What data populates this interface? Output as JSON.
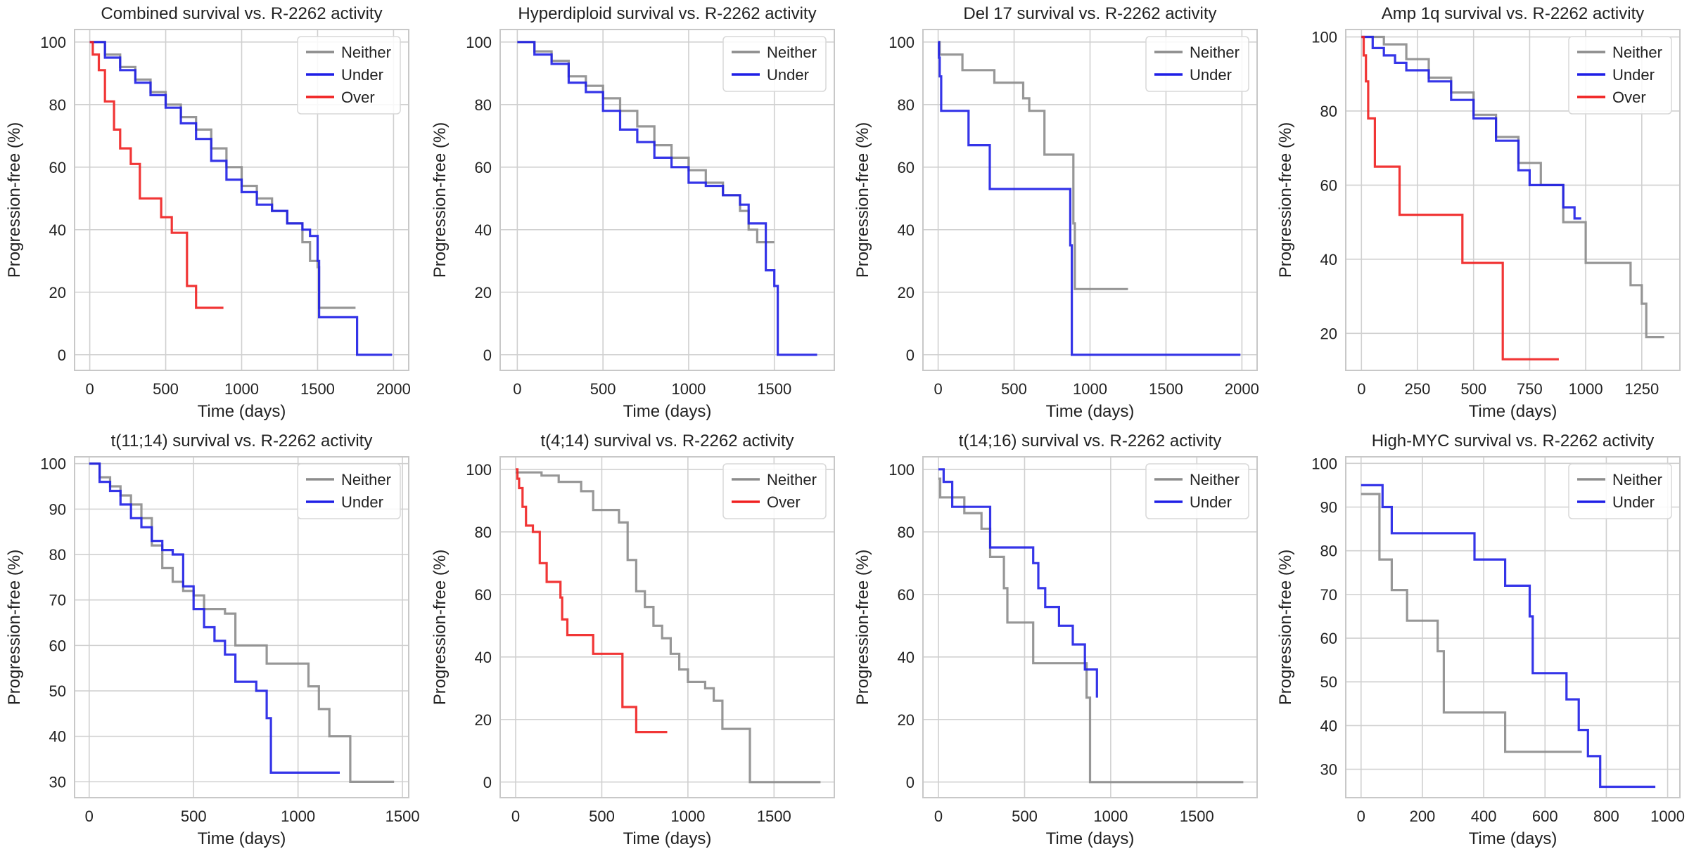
{
  "figure": {
    "ylabel_default": "Progression-free (%)",
    "xlabel_default": "Time (days)"
  },
  "colors": {
    "Neither": "#8c8c8c",
    "Under": "#1f1fe6",
    "Over": "#f02020",
    "grid": "#d0d0d0",
    "spine": "#c8c8c8"
  },
  "chart_data": [
    {
      "type": "line",
      "title": "Combined survival vs. R-2262 activity",
      "xlabel": "Time (days)",
      "ylabel": "Progression-free (%)",
      "xlim": [
        -100,
        2100
      ],
      "ylim": [
        -5,
        104
      ],
      "xticks": [
        0,
        500,
        1000,
        1500,
        2000
      ],
      "yticks": [
        0,
        20,
        40,
        60,
        80,
        100
      ],
      "legend": [
        "Neither",
        "Under",
        "Over"
      ],
      "series": [
        {
          "name": "Neither",
          "x": [
            0,
            100,
            200,
            300,
            400,
            500,
            600,
            700,
            800,
            900,
            1000,
            1100,
            1200,
            1300,
            1400,
            1450,
            1500,
            1510,
            1750
          ],
          "y": [
            100,
            96,
            92,
            88,
            84,
            80,
            76,
            72,
            66,
            60,
            54,
            50,
            46,
            42,
            36,
            30,
            28,
            15,
            15
          ]
        },
        {
          "name": "Under",
          "x": [
            0,
            100,
            200,
            300,
            400,
            500,
            600,
            700,
            800,
            900,
            1000,
            1100,
            1200,
            1300,
            1400,
            1450,
            1500,
            1510,
            1750,
            1760,
            1990
          ],
          "y": [
            100,
            95,
            91,
            87,
            83,
            79,
            74,
            69,
            62,
            56,
            52,
            48,
            46,
            42,
            40,
            38,
            30,
            12,
            12,
            0,
            0
          ]
        },
        {
          "name": "Over",
          "x": [
            0,
            20,
            60,
            100,
            160,
            200,
            270,
            330,
            450,
            470,
            540,
            620,
            640,
            700,
            880
          ],
          "y": [
            100,
            96,
            91,
            81,
            72,
            66,
            61,
            50,
            50,
            44,
            39,
            39,
            22,
            15,
            15
          ]
        }
      ]
    },
    {
      "type": "line",
      "title": "Hyperdiploid survival vs. R-2262 activity",
      "xlabel": "Time (days)",
      "ylabel": "Progression-free (%)",
      "xlim": [
        -100,
        1850
      ],
      "ylim": [
        -5,
        104
      ],
      "xticks": [
        0,
        500,
        1000,
        1500
      ],
      "yticks": [
        0,
        20,
        40,
        60,
        80,
        100
      ],
      "legend": [
        "Neither",
        "Under"
      ],
      "series": [
        {
          "name": "Neither",
          "x": [
            0,
            100,
            200,
            300,
            400,
            500,
            600,
            700,
            800,
            900,
            1000,
            1100,
            1200,
            1300,
            1350,
            1400,
            1500
          ],
          "y": [
            100,
            97,
            94,
            89,
            86,
            82,
            78,
            73,
            67,
            63,
            59,
            55,
            51,
            46,
            40,
            36,
            36
          ]
        },
        {
          "name": "Under",
          "x": [
            0,
            100,
            200,
            300,
            400,
            500,
            600,
            700,
            800,
            900,
            1000,
            1100,
            1200,
            1300,
            1350,
            1400,
            1450,
            1500,
            1520,
            1750
          ],
          "y": [
            100,
            96,
            93,
            87,
            84,
            78,
            72,
            68,
            63,
            60,
            55,
            54,
            51,
            48,
            42,
            42,
            27,
            22,
            0,
            0
          ]
        }
      ]
    },
    {
      "type": "line",
      "title": "Del 17 survival vs. R-2262 activity",
      "xlabel": "Time (days)",
      "ylabel": "Progression-free (%)",
      "xlim": [
        -100,
        2100
      ],
      "ylim": [
        -5,
        104
      ],
      "xticks": [
        0,
        500,
        1000,
        1500,
        2000
      ],
      "yticks": [
        0,
        20,
        40,
        60,
        80,
        100
      ],
      "legend": [
        "Neither",
        "Under"
      ],
      "series": [
        {
          "name": "Neither",
          "x": [
            0,
            10,
            160,
            370,
            560,
            600,
            700,
            880,
            890,
            900,
            1250
          ],
          "y": [
            100,
            96,
            91,
            87,
            82,
            78,
            64,
            64,
            42,
            21,
            21
          ]
        },
        {
          "name": "Under",
          "x": [
            0,
            5,
            10,
            20,
            130,
            200,
            340,
            870,
            880,
            1990
          ],
          "y": [
            100,
            95,
            89,
            78,
            78,
            67,
            53,
            35,
            0,
            0
          ]
        }
      ]
    },
    {
      "type": "line",
      "title": "Amp 1q survival vs. R-2262 activity",
      "xlabel": "Time (days)",
      "ylabel": "Progression-free (%)",
      "xlim": [
        -70,
        1420
      ],
      "ylim": [
        10,
        102
      ],
      "xticks": [
        0,
        250,
        500,
        750,
        1000,
        1250
      ],
      "yticks": [
        20,
        40,
        60,
        80,
        100
      ],
      "legend": [
        "Neither",
        "Under",
        "Over"
      ],
      "series": [
        {
          "name": "Neither",
          "x": [
            0,
            100,
            200,
            300,
            400,
            500,
            600,
            700,
            800,
            900,
            1000,
            1100,
            1200,
            1250,
            1270,
            1300,
            1350
          ],
          "y": [
            100,
            98,
            94,
            89,
            85,
            79,
            73,
            66,
            60,
            50,
            39,
            39,
            33,
            28,
            19,
            19,
            19
          ]
        },
        {
          "name": "Under",
          "x": [
            0,
            50,
            100,
            150,
            200,
            300,
            400,
            500,
            600,
            700,
            750,
            800,
            900,
            950,
            980
          ],
          "y": [
            100,
            97,
            95,
            93,
            91,
            88,
            83,
            78,
            72,
            64,
            60,
            60,
            54,
            51,
            51
          ]
        },
        {
          "name": "Over",
          "x": [
            0,
            10,
            20,
            30,
            60,
            170,
            450,
            620,
            630,
            880
          ],
          "y": [
            100,
            95,
            88,
            78,
            65,
            52,
            39,
            39,
            13,
            13
          ]
        }
      ]
    },
    {
      "type": "line",
      "title": "t(11;14) survival vs. R-2262 activity",
      "xlabel": "Time (days)",
      "ylabel": "Progression-free (%)",
      "xlim": [
        -70,
        1530
      ],
      "ylim": [
        26.5,
        101.5
      ],
      "xticks": [
        0,
        500,
        1000,
        1500
      ],
      "yticks": [
        30,
        40,
        50,
        60,
        70,
        80,
        90,
        100
      ],
      "legend": [
        "Neither",
        "Under"
      ],
      "series": [
        {
          "name": "Neither",
          "x": [
            0,
            50,
            100,
            150,
            200,
            250,
            300,
            350,
            400,
            450,
            500,
            550,
            650,
            700,
            750,
            850,
            1050,
            1100,
            1150,
            1250,
            1460
          ],
          "y": [
            100,
            97,
            95,
            93,
            91,
            88,
            82,
            77,
            74,
            72,
            71,
            68,
            67,
            60,
            60,
            56,
            51,
            46,
            40,
            30,
            30
          ]
        },
        {
          "name": "Under",
          "x": [
            0,
            50,
            100,
            150,
            200,
            250,
            300,
            350,
            400,
            450,
            500,
            550,
            600,
            650,
            700,
            800,
            850,
            870,
            880,
            1200
          ],
          "y": [
            100,
            96,
            94,
            91,
            88,
            86,
            83,
            81,
            80,
            73,
            68,
            64,
            61,
            58,
            52,
            50,
            44,
            32,
            32,
            32
          ]
        }
      ]
    },
    {
      "type": "line",
      "title": "t(4;14) survival vs. R-2262 activity",
      "xlabel": "Time (days)",
      "ylabel": "Progression-free (%)",
      "xlim": [
        -90,
        1850
      ],
      "ylim": [
        -5,
        104
      ],
      "xticks": [
        0,
        500,
        1000,
        1500
      ],
      "yticks": [
        0,
        20,
        40,
        60,
        80,
        100
      ],
      "legend": [
        "Neither",
        "Over"
      ],
      "series": [
        {
          "name": "Neither",
          "x": [
            0,
            150,
            250,
            380,
            450,
            600,
            650,
            700,
            750,
            800,
            850,
            900,
            950,
            1000,
            1100,
            1150,
            1200,
            1350,
            1360,
            1770
          ],
          "y": [
            99,
            98,
            96,
            93,
            87,
            83,
            71,
            61,
            56,
            50,
            46,
            41,
            36,
            32,
            30,
            26,
            17,
            17,
            0,
            0
          ]
        },
        {
          "name": "Over",
          "x": [
            0,
            10,
            20,
            40,
            60,
            100,
            140,
            180,
            260,
            270,
            300,
            450,
            600,
            620,
            700,
            880
          ],
          "y": [
            100,
            97,
            94,
            88,
            82,
            80,
            70,
            64,
            59,
            52,
            47,
            41,
            41,
            24,
            16,
            16
          ]
        }
      ]
    },
    {
      "type": "line",
      "title": "t(14;16) survival vs. R-2262 activity",
      "xlabel": "Time (days)",
      "ylabel": "Progression-free (%)",
      "xlim": [
        -90,
        1850
      ],
      "ylim": [
        -5,
        104
      ],
      "xticks": [
        0,
        500,
        1000,
        1500
      ],
      "yticks": [
        0,
        20,
        40,
        60,
        80,
        100
      ],
      "legend": [
        "Neither",
        "Under"
      ],
      "series": [
        {
          "name": "Neither",
          "x": [
            0,
            10,
            150,
            250,
            300,
            380,
            400,
            550,
            850,
            860,
            880,
            1770
          ],
          "y": [
            97,
            91,
            86,
            81,
            72,
            62,
            51,
            38,
            38,
            27,
            0,
            0
          ]
        },
        {
          "name": "Under",
          "x": [
            0,
            30,
            80,
            200,
            300,
            550,
            580,
            620,
            700,
            780,
            850,
            900,
            920
          ],
          "y": [
            100,
            96,
            88,
            88,
            75,
            70,
            62,
            56,
            50,
            44,
            36,
            36,
            27
          ]
        }
      ]
    },
    {
      "type": "line",
      "title": "High-MYC survival vs. R-2262 activity",
      "xlabel": "Time (days)",
      "ylabel": "Progression-free (%)",
      "xlim": [
        -50,
        1040
      ],
      "ylim": [
        23.5,
        101.5
      ],
      "xticks": [
        0,
        200,
        400,
        600,
        800,
        1000
      ],
      "yticks": [
        30,
        40,
        50,
        60,
        70,
        80,
        90,
        100
      ],
      "legend": [
        "Neither",
        "Under"
      ],
      "series": [
        {
          "name": "Neither",
          "x": [
            0,
            60,
            100,
            150,
            250,
            270,
            470,
            600,
            720
          ],
          "y": [
            93,
            78,
            71,
            64,
            57,
            43,
            34,
            34,
            34
          ]
        },
        {
          "name": "Under",
          "x": [
            0,
            70,
            100,
            370,
            470,
            550,
            560,
            670,
            710,
            740,
            780,
            960
          ],
          "y": [
            95,
            90,
            84,
            78,
            72,
            65,
            52,
            46,
            39,
            33,
            26,
            26
          ]
        }
      ]
    }
  ]
}
